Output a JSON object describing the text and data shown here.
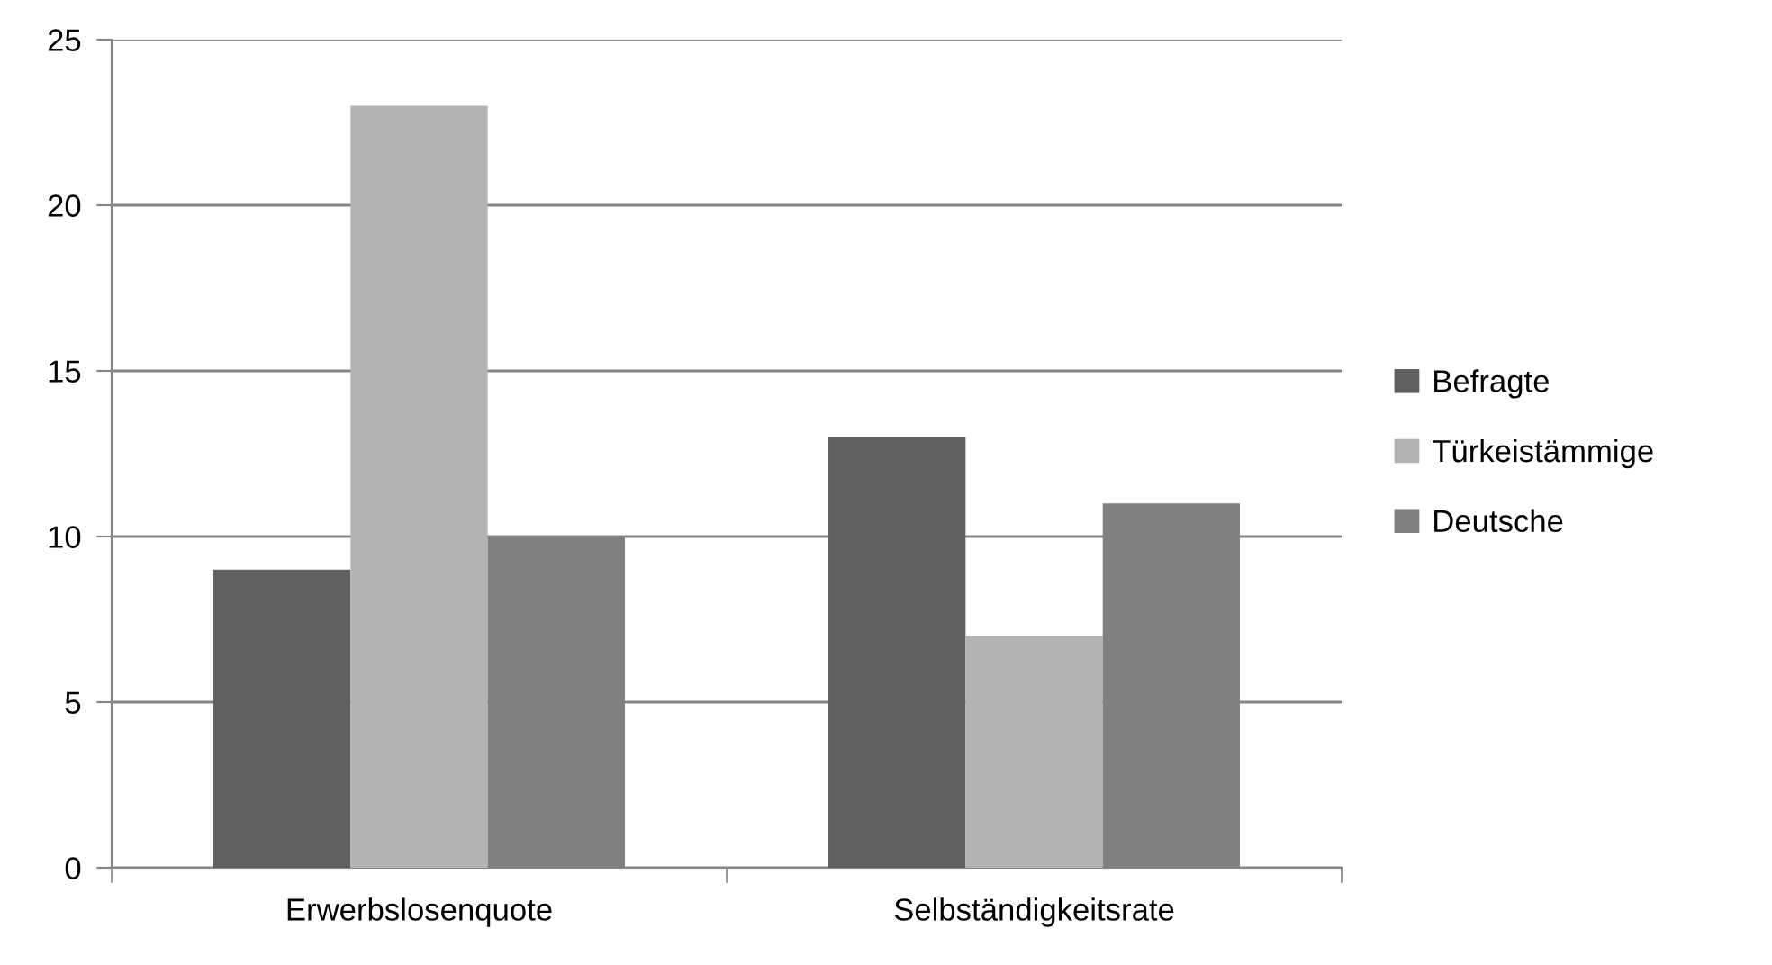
{
  "chart_data": {
    "type": "bar",
    "categories": [
      "Erwerbslosenquote",
      "Selbständigkeitsrate"
    ],
    "series": [
      {
        "name": "Befragte",
        "color": "#606060",
        "values": [
          9,
          13
        ]
      },
      {
        "name": "Türkeistämmige",
        "color": "#b3b3b3",
        "values": [
          23,
          7
        ]
      },
      {
        "name": "Deutsche",
        "color": "#808080",
        "values": [
          10,
          11
        ]
      }
    ],
    "ylim": [
      0,
      25
    ],
    "yticks": [
      0,
      5,
      10,
      15,
      20,
      25
    ],
    "grid": "y",
    "legend": "right"
  }
}
